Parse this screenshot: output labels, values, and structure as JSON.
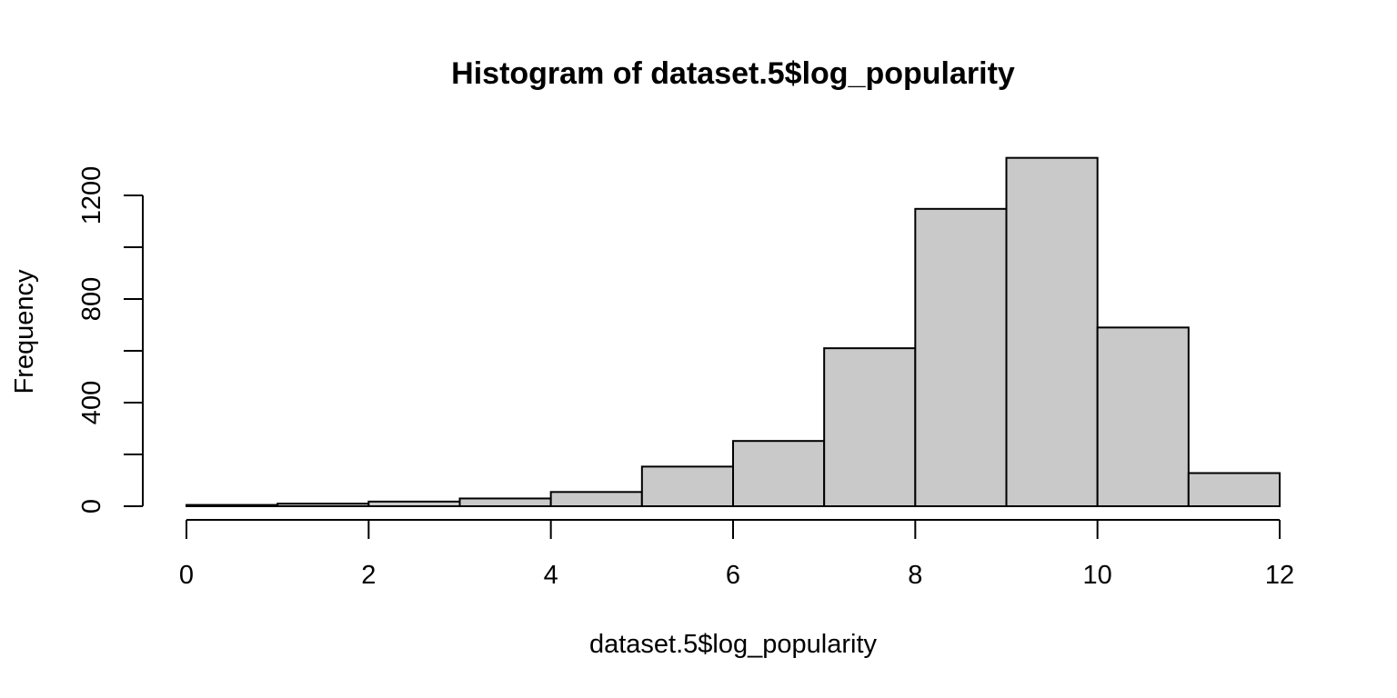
{
  "chart_data": {
    "type": "bar",
    "title": "Histogram of dataset.5$log_popularity",
    "xlabel": "dataset.5$log_popularity",
    "ylabel": "Frequency",
    "bins": [
      {
        "x0": 0,
        "x1": 1,
        "count": 5
      },
      {
        "x0": 1,
        "x1": 2,
        "count": 10
      },
      {
        "x0": 2,
        "x1": 3,
        "count": 18
      },
      {
        "x0": 3,
        "x1": 4,
        "count": 30
      },
      {
        "x0": 4,
        "x1": 5,
        "count": 55
      },
      {
        "x0": 5,
        "x1": 6,
        "count": 153
      },
      {
        "x0": 6,
        "x1": 7,
        "count": 252
      },
      {
        "x0": 7,
        "x1": 8,
        "count": 610
      },
      {
        "x0": 8,
        "x1": 9,
        "count": 1148
      },
      {
        "x0": 9,
        "x1": 10,
        "count": 1345
      },
      {
        "x0": 10,
        "x1": 11,
        "count": 690
      },
      {
        "x0": 11,
        "x1": 12,
        "count": 128
      }
    ],
    "xlim": [
      0,
      12
    ],
    "ylim": [
      0,
      1345
    ],
    "x_ticks": [
      "0",
      "2",
      "4",
      "6",
      "8",
      "10",
      "12"
    ],
    "y_ticks": [
      "0",
      "400",
      "800",
      "1200"
    ],
    "bar_color": "#c9c9c9",
    "grid": false
  }
}
